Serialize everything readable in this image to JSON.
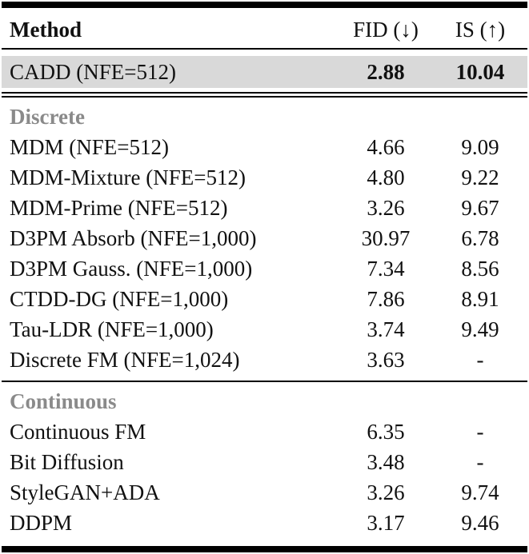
{
  "table": {
    "columns": [
      {
        "label": "Method"
      },
      {
        "label": "FID (↓)"
      },
      {
        "label": "IS (↑)"
      }
    ],
    "highlight_row": {
      "method": "CADD (NFE=512)",
      "fid": "2.88",
      "is": "10.04"
    },
    "sections": [
      {
        "label": "Discrete",
        "rows": [
          {
            "method": "MDM (NFE=512)",
            "fid": "4.66",
            "is": "9.09"
          },
          {
            "method": "MDM-Mixture (NFE=512)",
            "fid": "4.80",
            "is": "9.22"
          },
          {
            "method": "MDM-Prime (NFE=512)",
            "fid": "3.26",
            "is": "9.67"
          },
          {
            "method": "D3PM Absorb (NFE=1,000)",
            "fid": "30.97",
            "is": "6.78"
          },
          {
            "method": "D3PM Gauss. (NFE=1,000)",
            "fid": "7.34",
            "is": "8.56"
          },
          {
            "method": "CTDD-DG (NFE=1,000)",
            "fid": "7.86",
            "is": "8.91"
          },
          {
            "method": "Tau-LDR (NFE=1,000)",
            "fid": "3.74",
            "is": "9.49"
          },
          {
            "method": "Discrete FM (NFE=1,024)",
            "fid": "3.63",
            "is": "-"
          }
        ]
      },
      {
        "label": "Continuous",
        "rows": [
          {
            "method": "Continuous FM",
            "fid": "6.35",
            "is": "-"
          },
          {
            "method": "Bit Diffusion",
            "fid": "3.48",
            "is": "-"
          },
          {
            "method": "StyleGAN+ADA",
            "fid": "3.26",
            "is": "9.74"
          },
          {
            "method": "DDPM",
            "fid": "3.17",
            "is": "9.46"
          }
        ]
      }
    ],
    "colors": {
      "highlight_bg": "#d9d9d9",
      "section_label": "#8a8a8a",
      "rule": "#000000",
      "text": "#111111"
    }
  }
}
